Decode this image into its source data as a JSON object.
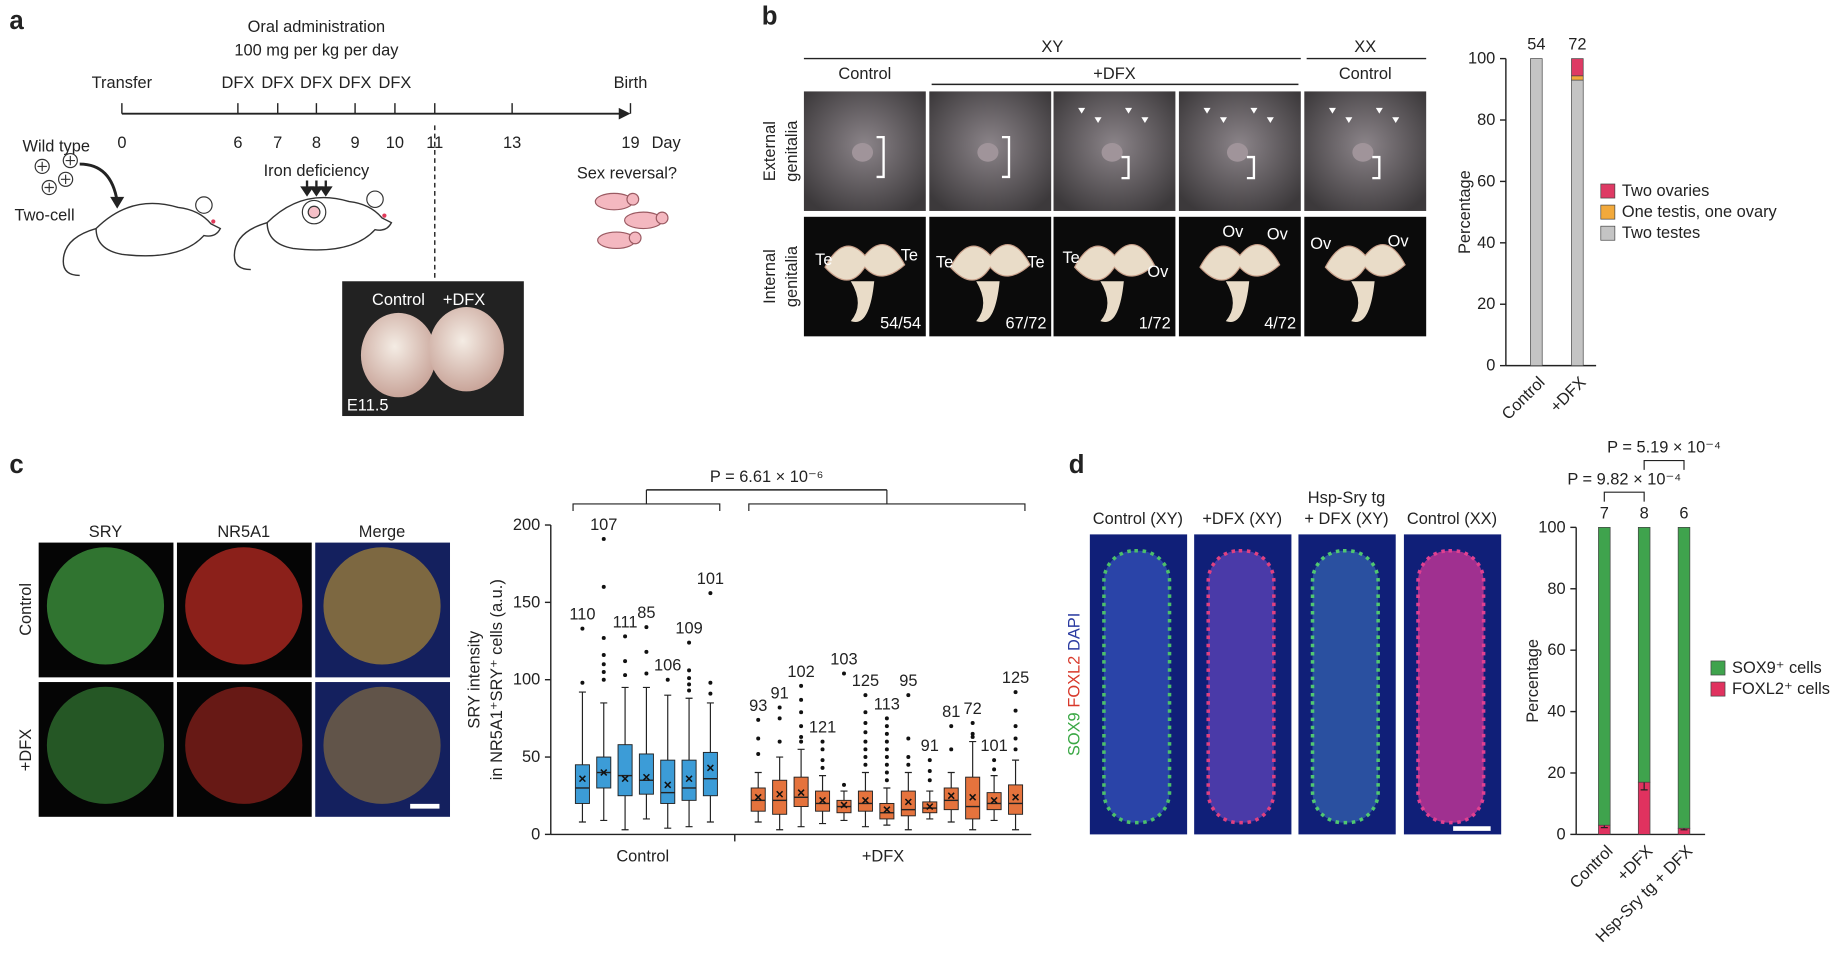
{
  "figure": {
    "panel_labels": [
      "a",
      "b",
      "c",
      "d"
    ],
    "a": {
      "header": [
        "Oral administration",
        "100 mg per kg per day"
      ],
      "start_label": "Transfer",
      "end_label": "Birth",
      "treatments": [
        "DFX",
        "DFX",
        "DFX",
        "DFX",
        "DFX"
      ],
      "days": [
        0,
        6,
        7,
        8,
        9,
        10,
        11,
        13,
        19
      ],
      "day_unit": "Day",
      "donor": "Wild type",
      "stage": "Two-cell",
      "condition": "Iron deficiency",
      "outcome": "Sex reversal?",
      "inset": {
        "groups": [
          "Control",
          "+DFX"
        ],
        "stage": "E11.5"
      }
    },
    "b": {
      "karyotypes": [
        "XY",
        "XX"
      ],
      "groups": [
        "Control",
        "+DFX",
        "Control"
      ],
      "rows": [
        [
          "External",
          "genitalia"
        ],
        [
          "Internal",
          "genitalia"
        ]
      ],
      "tissue_labels": [
        [
          "Te",
          "Te"
        ],
        [
          "Te",
          "Te"
        ],
        [
          "Te",
          "Ov"
        ],
        [
          "Ov",
          "Ov"
        ],
        [
          "Ov",
          "Ov"
        ]
      ],
      "counts": [
        "54/54",
        "67/72",
        "1/72",
        "4/72"
      ]
    },
    "c": {
      "stains": [
        "SRY",
        "NR5A1",
        "Merge"
      ],
      "rows": [
        "Control",
        "+DFX"
      ]
    },
    "d": {
      "groups": [
        [
          "Control (XY)"
        ],
        [
          "+DFX (XY)"
        ],
        [
          "Hsp-Sry tg",
          "+ DFX (XY)"
        ],
        [
          "Control (XX)"
        ]
      ],
      "stains": [
        "SOX9",
        "FOXL2",
        "DAPI"
      ]
    }
  },
  "chart_data": [
    {
      "type": "stacked_bar",
      "categories": [
        "Control",
        "+DFX"
      ],
      "n": [
        54,
        72
      ],
      "series": [
        {
          "name": "Two testes",
          "color": "#c4c4c4",
          "values": [
            100,
            93
          ]
        },
        {
          "name": "One testis, one ovary",
          "color": "#f2a93b",
          "values": [
            0,
            1.4
          ]
        },
        {
          "name": "Two ovaries",
          "color": "#de3a64",
          "values": [
            0,
            5.6
          ]
        }
      ],
      "ylabel": "Percentage",
      "ylim": [
        0,
        100
      ],
      "yticks": [
        0,
        20,
        40,
        60,
        80,
        100
      ],
      "legend": "right"
    },
    {
      "type": "box",
      "ylabel": [
        "SRY intensity",
        "in NR5A1⁺SRY⁺ cells (a.u.)"
      ],
      "ylim": [
        0,
        200
      ],
      "yticks": [
        0,
        50,
        100,
        150,
        200
      ],
      "annotation": "P = 6.61 × 10⁻⁶",
      "groups": [
        {
          "name": "Control",
          "color": "#3c9cd7",
          "boxes": [
            {
              "n": 110,
              "min": 8,
              "q1": 20,
              "median": 30,
              "q3": 45,
              "max": 92,
              "mean": 36,
              "outliers": [
                98,
                133
              ]
            },
            {
              "n": 107,
              "min": 9,
              "q1": 30,
              "median": 40,
              "q3": 50,
              "max": 85,
              "mean": 40,
              "outliers": [
                100,
                105,
                110,
                116,
                127,
                160,
                191
              ]
            },
            {
              "n": 111,
              "min": 3,
              "q1": 25,
              "median": 38,
              "q3": 58,
              "max": 95,
              "mean": 36,
              "outliers": [
                103,
                112,
                128
              ]
            },
            {
              "n": 85,
              "min": 10,
              "q1": 26,
              "median": 35,
              "q3": 52,
              "max": 95,
              "mean": 37,
              "outliers": [
                104,
                118,
                134
              ]
            },
            {
              "n": 106,
              "min": 4,
              "q1": 20,
              "median": 27,
              "q3": 48,
              "max": 90,
              "mean": 32,
              "outliers": [
                100
              ]
            },
            {
              "n": 109,
              "min": 5,
              "q1": 22,
              "median": 30,
              "q3": 48,
              "max": 88,
              "mean": 36,
              "outliers": [
                93,
                97,
                101,
                106,
                124
              ]
            },
            {
              "n": 101,
              "min": 8,
              "q1": 25,
              "median": 36,
              "q3": 53,
              "max": 85,
              "mean": 43,
              "outliers": [
                91,
                98,
                156
              ]
            }
          ]
        },
        {
          "name": "+DFX",
          "color": "#e5733d",
          "boxes": [
            {
              "n": 93,
              "min": 8,
              "q1": 15,
              "median": 22,
              "q3": 30,
              "max": 40,
              "mean": 24,
              "outliers": [
                52,
                62,
                74
              ]
            },
            {
              "n": 91,
              "min": 3,
              "q1": 13,
              "median": 22,
              "q3": 35,
              "max": 50,
              "mean": 26,
              "outliers": [
                60,
                75,
                82
              ]
            },
            {
              "n": 102,
              "min": 5,
              "q1": 18,
              "median": 24,
              "q3": 37,
              "max": 55,
              "mean": 27,
              "outliers": [
                60,
                63,
                70,
                79,
                87,
                96
              ]
            },
            {
              "n": 121,
              "min": 7,
              "q1": 15,
              "median": 20,
              "q3": 28,
              "max": 38,
              "mean": 22,
              "outliers": [
                43,
                48,
                55,
                60
              ]
            },
            {
              "n": 103,
              "min": 9,
              "q1": 14,
              "median": 18,
              "q3": 22,
              "max": 28,
              "mean": 19,
              "outliers": [
                32,
                104
              ]
            },
            {
              "n": 125,
              "min": 5,
              "q1": 15,
              "median": 20,
              "q3": 28,
              "max": 40,
              "mean": 22,
              "outliers": [
                45,
                50,
                55,
                60,
                66,
                72,
                79,
                90
              ]
            },
            {
              "n": 113,
              "min": 6,
              "q1": 10,
              "median": 14,
              "q3": 20,
              "max": 30,
              "mean": 16,
              "outliers": [
                35,
                40,
                45,
                50,
                55,
                60,
                65,
                70,
                75
              ]
            },
            {
              "n": 95,
              "min": 3,
              "q1": 12,
              "median": 16,
              "q3": 28,
              "max": 40,
              "mean": 21,
              "outliers": [
                45,
                50,
                62,
                90
              ]
            },
            {
              "n": 91,
              "min": 10,
              "q1": 14,
              "median": 17,
              "q3": 21,
              "max": 28,
              "mean": 18,
              "outliers": [
                35,
                41,
                48
              ]
            },
            {
              "n": 81,
              "min": 8,
              "q1": 16,
              "median": 22,
              "q3": 30,
              "max": 40,
              "mean": 25,
              "outliers": [
                55,
                70
              ]
            },
            {
              "n": 72,
              "min": 3,
              "q1": 10,
              "median": 18,
              "q3": 37,
              "max": 60,
              "mean": 24,
              "outliers": [
                63,
                65,
                72
              ]
            },
            {
              "n": 101,
              "min": 9,
              "q1": 16,
              "median": 20,
              "q3": 27,
              "max": 38,
              "mean": 22,
              "outliers": [
                42,
                48
              ]
            },
            {
              "n": 125,
              "min": 3,
              "q1": 13,
              "median": 20,
              "q3": 32,
              "max": 48,
              "mean": 24,
              "outliers": [
                55,
                62,
                70,
                80,
                92
              ]
            }
          ]
        }
      ]
    },
    {
      "type": "stacked_bar",
      "categories": [
        "Control",
        "+DFX",
        "Hsp-Sry tg + DFX"
      ],
      "n": [
        7,
        8,
        6
      ],
      "series": [
        {
          "name": "FOXL2⁺ cells",
          "color": "#e0325f",
          "values": [
            3,
            17,
            2
          ],
          "errors": [
            0.8,
            2.5,
            0.5
          ]
        },
        {
          "name": "SOX9⁺ cells",
          "color": "#3fa34d",
          "values": [
            97,
            83,
            98
          ]
        }
      ],
      "ylabel": "Percentage",
      "ylim": [
        0,
        100
      ],
      "yticks": [
        0,
        20,
        40,
        60,
        80,
        100
      ],
      "legend": "right",
      "annotations": [
        "P = 9.82 × 10⁻⁴",
        "P = 5.19 × 10⁻⁴"
      ]
    }
  ]
}
